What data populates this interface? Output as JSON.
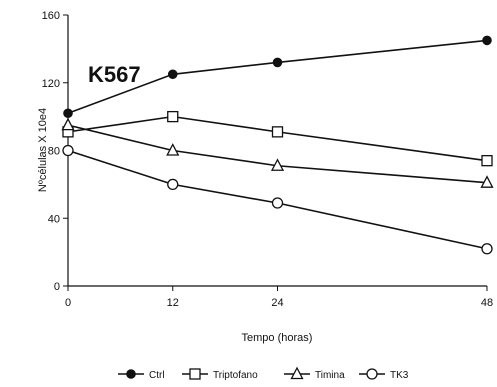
{
  "chart_data": {
    "type": "line",
    "annotation": "K567",
    "xlabel": "Tempo (horas)",
    "ylabel": "Nºcélulas X 10e4",
    "x": [
      0,
      12,
      24,
      48
    ],
    "x_tick_labels": [
      "0",
      "12",
      "24",
      "48"
    ],
    "y_ticks": [
      0,
      40,
      80,
      120,
      160
    ],
    "ylim": [
      0,
      160
    ],
    "grid": false,
    "legend_position": "bottom",
    "series": [
      {
        "name": "Ctrl",
        "marker": "filled-circle",
        "values": [
          102,
          125,
          132,
          145
        ]
      },
      {
        "name": "Triptofano",
        "marker": "open-square",
        "values": [
          91,
          100,
          91,
          74
        ]
      },
      {
        "name": "Timina",
        "marker": "open-triangle",
        "values": [
          95,
          80,
          71,
          61
        ]
      },
      {
        "name": "TK3",
        "marker": "open-circle",
        "values": [
          80,
          60,
          49,
          22
        ]
      }
    ]
  }
}
